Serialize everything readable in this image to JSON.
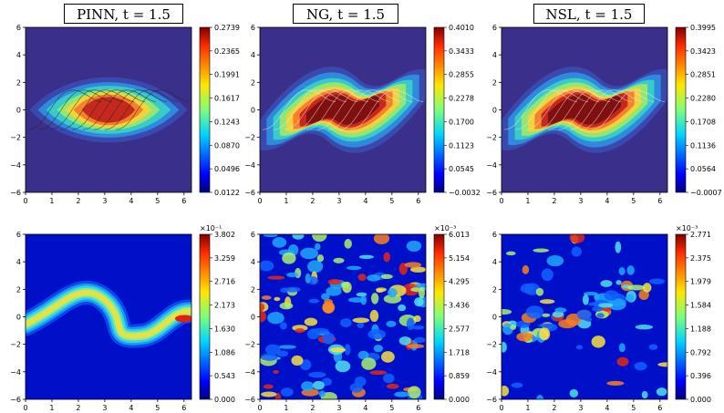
{
  "chart_data": [
    {
      "type": "heatmap",
      "title": "PINN, t = 1.5",
      "method": "PINN",
      "time": "t = 1.5",
      "row": "solution",
      "xlim": [
        0,
        6.283
      ],
      "ylim": [
        -6,
        6
      ],
      "x_ticks": [
        "0",
        "1",
        "2",
        "3",
        "4",
        "5",
        "6"
      ],
      "y_ticks": [
        "6",
        "4",
        "2",
        "0",
        "−2",
        "−4",
        "−6"
      ],
      "colorbar": {
        "min": 0.0122,
        "max": 0.2739,
        "ticks": [
          "0.2739",
          "0.2365",
          "0.1991",
          "0.1617",
          "0.1243",
          "0.0870",
          "0.0496",
          "0.0122"
        ]
      },
      "contours": true
    },
    {
      "type": "heatmap",
      "title": "NG, t = 1.5",
      "method": "NG",
      "time": "t = 1.5",
      "row": "solution",
      "xlim": [
        0,
        6.283
      ],
      "ylim": [
        -6,
        6
      ],
      "x_ticks": [
        "0",
        "1",
        "2",
        "3",
        "4",
        "5",
        "6"
      ],
      "y_ticks": [
        "6",
        "4",
        "2",
        "0",
        "−2",
        "−4",
        "−6"
      ],
      "colorbar": {
        "min": -0.0032,
        "max": 0.401,
        "ticks": [
          "0.4010",
          "0.3433",
          "0.2855",
          "0.2278",
          "0.1700",
          "0.1123",
          "0.0545",
          "−0.0032"
        ]
      },
      "contours": true
    },
    {
      "type": "heatmap",
      "title": "NSL, t = 1.5",
      "method": "NSL",
      "time": "t = 1.5",
      "row": "solution",
      "xlim": [
        0,
        6.283
      ],
      "ylim": [
        -6,
        6
      ],
      "x_ticks": [
        "0",
        "1",
        "2",
        "3",
        "4",
        "5",
        "6"
      ],
      "y_ticks": [
        "6",
        "4",
        "2",
        "0",
        "−2",
        "−4",
        "−6"
      ],
      "colorbar": {
        "min": -0.0007,
        "max": 0.3995,
        "ticks": [
          "0.3995",
          "0.3423",
          "0.2851",
          "0.2280",
          "0.1708",
          "0.1136",
          "0.0564",
          "−0.0007"
        ]
      },
      "contours": true
    },
    {
      "type": "heatmap",
      "method": "PINN",
      "row": "error",
      "xlim": [
        0,
        6.283
      ],
      "ylim": [
        -6,
        6
      ],
      "x_ticks": [
        "0",
        "1",
        "2",
        "3",
        "4",
        "5",
        "6"
      ],
      "y_ticks": [
        "6",
        "4",
        "2",
        "0",
        "−2",
        "−4",
        "−6"
      ],
      "colorbar": {
        "min": 0.0,
        "max": 3.802,
        "scale": "×10⁻¹",
        "ticks": [
          "3.802",
          "3.259",
          "2.716",
          "2.173",
          "1.630",
          "1.086",
          "0.543",
          "0.000"
        ]
      }
    },
    {
      "type": "heatmap",
      "method": "NG",
      "row": "error",
      "xlim": [
        0,
        6.283
      ],
      "ylim": [
        -6,
        6
      ],
      "x_ticks": [
        "0",
        "1",
        "2",
        "3",
        "4",
        "5",
        "6"
      ],
      "y_ticks": [
        "6",
        "4",
        "2",
        "0",
        "−2",
        "−4",
        "−6"
      ],
      "colorbar": {
        "min": 0.0,
        "max": 6.013,
        "scale": "×10⁻³",
        "ticks": [
          "6.013",
          "5.154",
          "4.295",
          "3.436",
          "2.577",
          "1.718",
          "0.859",
          "0.000"
        ]
      }
    },
    {
      "type": "heatmap",
      "method": "NSL",
      "row": "error",
      "xlim": [
        0,
        6.283
      ],
      "ylim": [
        -6,
        6
      ],
      "x_ticks": [
        "0",
        "1",
        "2",
        "3",
        "4",
        "5",
        "6"
      ],
      "y_ticks": [
        "6",
        "4",
        "2",
        "0",
        "−2",
        "−4",
        "−6"
      ],
      "colorbar": {
        "min": 0.0,
        "max": 2.771,
        "scale": "×10⁻³",
        "ticks": [
          "2.771",
          "2.375",
          "1.979",
          "1.584",
          "1.188",
          "0.792",
          "0.396",
          "0.000"
        ]
      }
    }
  ]
}
